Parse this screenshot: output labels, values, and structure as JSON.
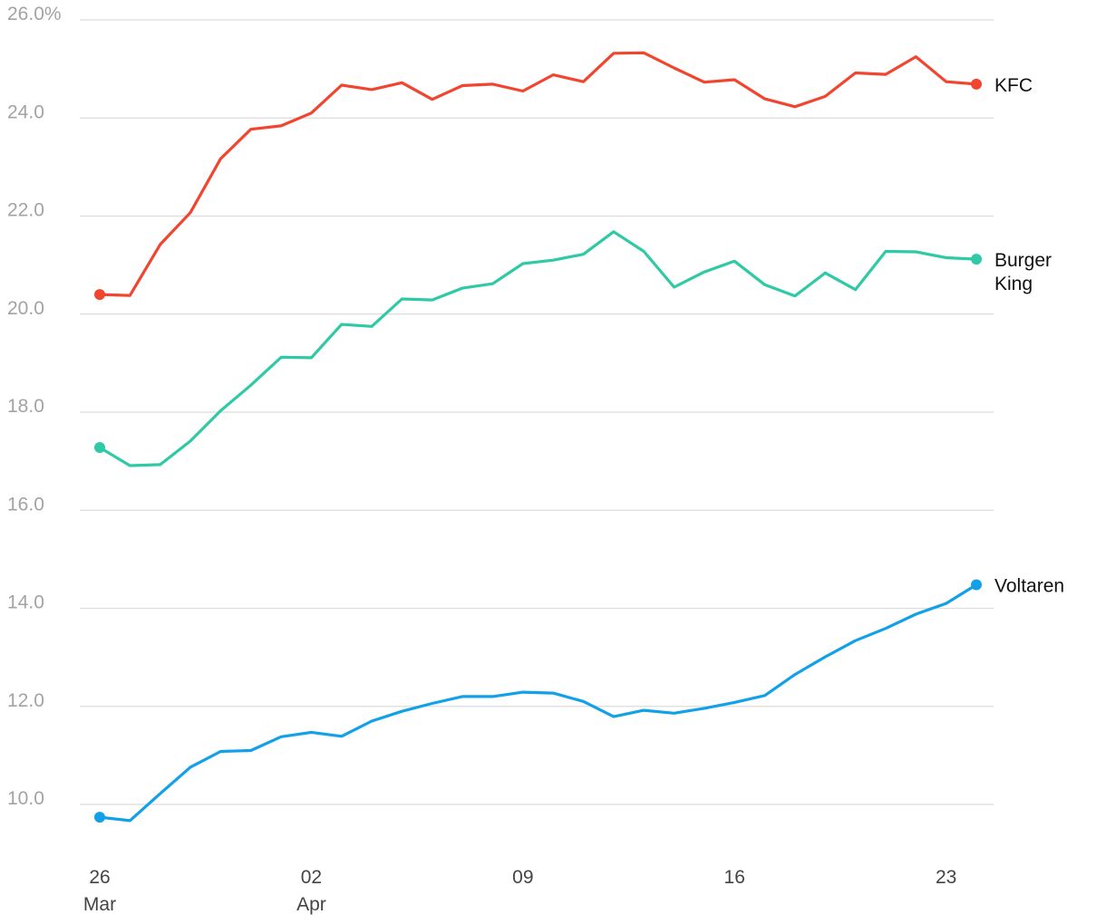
{
  "chart_data": {
    "type": "line",
    "title": "",
    "xlabel": "",
    "ylabel": "",
    "ylim": [
      9,
      26
    ],
    "yticks": [
      10,
      12,
      14,
      16,
      18,
      20,
      22,
      24,
      26
    ],
    "ytick_labels": [
      "10.0",
      "12.0",
      "14.0",
      "16.0",
      "18.0",
      "20.0",
      "22.0",
      "24.0",
      "26.0%"
    ],
    "grid": true,
    "x_dates": [
      "Mar 26",
      "Mar 27",
      "Mar 28",
      "Mar 29",
      "Mar 30",
      "Mar 31",
      "Apr 01",
      "Apr 02",
      "Apr 03",
      "Apr 04",
      "Apr 05",
      "Apr 06",
      "Apr 07",
      "Apr 08",
      "Apr 09",
      "Apr 10",
      "Apr 11",
      "Apr 12",
      "Apr 13",
      "Apr 14",
      "Apr 15",
      "Apr 16",
      "Apr 17",
      "Apr 18",
      "Apr 19",
      "Apr 20",
      "Apr 21",
      "Apr 22",
      "Apr 23",
      "Apr 24"
    ],
    "xticks": [
      {
        "index": 0,
        "line1": "26",
        "line2": "Mar"
      },
      {
        "index": 7,
        "line1": "02",
        "line2": "Apr"
      },
      {
        "index": 14,
        "line1": "09",
        "line2": ""
      },
      {
        "index": 21,
        "line1": "16",
        "line2": ""
      },
      {
        "index": 28,
        "line1": "23",
        "line2": ""
      }
    ],
    "series": [
      {
        "name": "KFC",
        "label_lines": [
          "KFC"
        ],
        "color": "#f2452f",
        "values": [
          20.4,
          20.38,
          21.42,
          22.07,
          23.17,
          23.77,
          23.84,
          24.1,
          24.67,
          24.58,
          24.72,
          24.38,
          24.66,
          24.69,
          24.55,
          24.88,
          24.74,
          25.32,
          25.33,
          25.02,
          24.73,
          24.78,
          24.39,
          24.23,
          24.44,
          24.92,
          24.89,
          25.25,
          24.74,
          24.69
        ]
      },
      {
        "name": "Burger King",
        "label_lines": [
          "Burger",
          "King"
        ],
        "color": "#2fcaa5",
        "values": [
          17.28,
          16.91,
          16.93,
          17.41,
          18.03,
          18.55,
          19.12,
          19.11,
          19.79,
          19.75,
          20.31,
          20.29,
          20.53,
          20.62,
          21.03,
          21.1,
          21.22,
          21.68,
          21.28,
          20.55,
          20.86,
          21.08,
          20.6,
          20.37,
          20.84,
          20.5,
          21.28,
          21.27,
          21.15,
          21.12
        ]
      },
      {
        "name": "Voltaren",
        "label_lines": [
          "Voltaren"
        ],
        "color": "#12a1e8",
        "values": [
          9.74,
          9.67,
          10.22,
          10.76,
          11.08,
          11.1,
          11.38,
          11.47,
          11.39,
          11.7,
          11.9,
          12.06,
          12.2,
          12.2,
          12.29,
          12.27,
          12.1,
          11.79,
          11.92,
          11.86,
          11.96,
          12.08,
          12.22,
          12.65,
          13.01,
          13.34,
          13.59,
          13.88,
          14.1,
          14.48
        ]
      }
    ]
  }
}
